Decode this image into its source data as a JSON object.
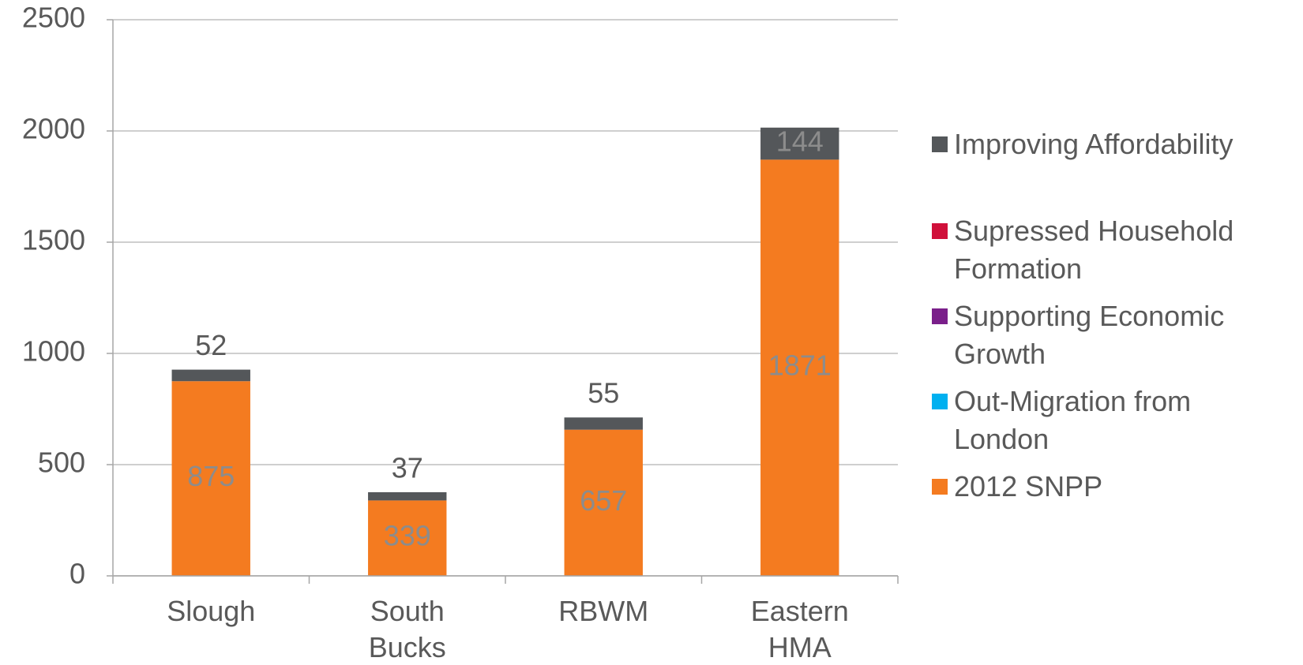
{
  "chart_data": {
    "type": "stacked_bar",
    "categories": [
      "Slough",
      "South Bucks",
      "RBWM",
      "Eastern HMA"
    ],
    "series": [
      {
        "name": "2012 SNPP",
        "color": "#f47b20",
        "values": [
          875,
          339,
          657,
          1871
        ]
      },
      {
        "name": "Out-Migration from London",
        "color": "#00b0f0",
        "values": [
          0,
          0,
          0,
          0
        ]
      },
      {
        "name": "Supporting Economic Growth",
        "color": "#7a1f8a",
        "values": [
          0,
          0,
          0,
          0
        ]
      },
      {
        "name": "Supressed Household Formation",
        "color": "#d0103a",
        "values": [
          0,
          0,
          0,
          0
        ]
      },
      {
        "name": "Improving Affordability",
        "color": "#54575a",
        "values": [
          52,
          37,
          55,
          144
        ]
      }
    ],
    "ylim": [
      0,
      2500
    ],
    "yticks": [
      0,
      500,
      1000,
      1500,
      2000,
      2500
    ],
    "grid": true,
    "legend": "right"
  }
}
